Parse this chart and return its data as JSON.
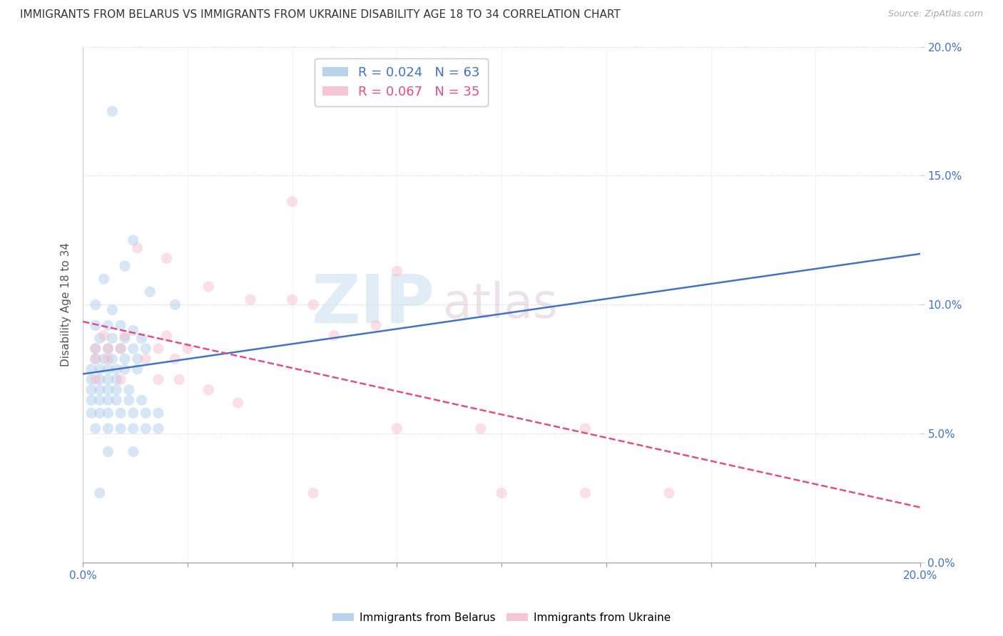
{
  "title": "IMMIGRANTS FROM BELARUS VS IMMIGRANTS FROM UKRAINE DISABILITY AGE 18 TO 34 CORRELATION CHART",
  "source": "Source: ZipAtlas.com",
  "ylabel": "Disability Age 18 to 34",
  "xlim": [
    0,
    0.2
  ],
  "ylim": [
    0,
    0.2
  ],
  "xticks": [
    0.0,
    0.025,
    0.05,
    0.075,
    0.1,
    0.125,
    0.15,
    0.175,
    0.2
  ],
  "yticks": [
    0.0,
    0.05,
    0.1,
    0.15,
    0.2
  ],
  "x_label_ticks": [
    0.0,
    0.2
  ],
  "x_label_values": [
    "0.0%",
    "20.0%"
  ],
  "right_ytick_labels": [
    "0.0%",
    "5.0%",
    "10.0%",
    "15.0%",
    "20.0%"
  ],
  "watermark_zip": "ZIP",
  "watermark_atlas": "atlas",
  "belarus_color": "#a8c8e8",
  "ukraine_color": "#f4b8c8",
  "belarus_line_color": "#4472c4",
  "ukraine_line_color": "#e05080",
  "belarus_R": 0.024,
  "belarus_N": 63,
  "ukraine_R": 0.067,
  "ukraine_N": 35,
  "legend_label_belarus": "R = 0.024   N = 63",
  "legend_label_ukraine": "R = 0.067   N = 35",
  "legend_label_belarus_bottom": "Immigrants from Belarus",
  "legend_label_ukraine_bottom": "Immigrants from Ukraine",
  "belarus_points": [
    [
      0.007,
      0.175
    ],
    [
      0.012,
      0.125
    ],
    [
      0.01,
      0.115
    ],
    [
      0.005,
      0.11
    ],
    [
      0.016,
      0.105
    ],
    [
      0.022,
      0.1
    ],
    [
      0.003,
      0.1
    ],
    [
      0.007,
      0.098
    ],
    [
      0.003,
      0.092
    ],
    [
      0.006,
      0.092
    ],
    [
      0.009,
      0.092
    ],
    [
      0.012,
      0.09
    ],
    [
      0.004,
      0.087
    ],
    [
      0.007,
      0.087
    ],
    [
      0.01,
      0.087
    ],
    [
      0.014,
      0.087
    ],
    [
      0.003,
      0.083
    ],
    [
      0.006,
      0.083
    ],
    [
      0.009,
      0.083
    ],
    [
      0.012,
      0.083
    ],
    [
      0.015,
      0.083
    ],
    [
      0.003,
      0.079
    ],
    [
      0.005,
      0.079
    ],
    [
      0.007,
      0.079
    ],
    [
      0.01,
      0.079
    ],
    [
      0.013,
      0.079
    ],
    [
      0.002,
      0.075
    ],
    [
      0.004,
      0.075
    ],
    [
      0.006,
      0.075
    ],
    [
      0.008,
      0.075
    ],
    [
      0.01,
      0.075
    ],
    [
      0.013,
      0.075
    ],
    [
      0.002,
      0.071
    ],
    [
      0.004,
      0.071
    ],
    [
      0.006,
      0.071
    ],
    [
      0.008,
      0.071
    ],
    [
      0.002,
      0.067
    ],
    [
      0.004,
      0.067
    ],
    [
      0.006,
      0.067
    ],
    [
      0.008,
      0.067
    ],
    [
      0.011,
      0.067
    ],
    [
      0.002,
      0.063
    ],
    [
      0.004,
      0.063
    ],
    [
      0.006,
      0.063
    ],
    [
      0.008,
      0.063
    ],
    [
      0.011,
      0.063
    ],
    [
      0.014,
      0.063
    ],
    [
      0.002,
      0.058
    ],
    [
      0.004,
      0.058
    ],
    [
      0.006,
      0.058
    ],
    [
      0.009,
      0.058
    ],
    [
      0.012,
      0.058
    ],
    [
      0.015,
      0.058
    ],
    [
      0.018,
      0.058
    ],
    [
      0.003,
      0.052
    ],
    [
      0.006,
      0.052
    ],
    [
      0.009,
      0.052
    ],
    [
      0.012,
      0.052
    ],
    [
      0.015,
      0.052
    ],
    [
      0.018,
      0.052
    ],
    [
      0.012,
      0.043
    ],
    [
      0.006,
      0.043
    ],
    [
      0.004,
      0.027
    ]
  ],
  "ukraine_points": [
    [
      0.05,
      0.14
    ],
    [
      0.013,
      0.122
    ],
    [
      0.02,
      0.118
    ],
    [
      0.03,
      0.107
    ],
    [
      0.04,
      0.102
    ],
    [
      0.05,
      0.102
    ],
    [
      0.055,
      0.1
    ],
    [
      0.075,
      0.113
    ],
    [
      0.07,
      0.092
    ],
    [
      0.005,
      0.088
    ],
    [
      0.01,
      0.088
    ],
    [
      0.02,
      0.088
    ],
    [
      0.06,
      0.088
    ],
    [
      0.003,
      0.083
    ],
    [
      0.006,
      0.083
    ],
    [
      0.009,
      0.083
    ],
    [
      0.018,
      0.083
    ],
    [
      0.025,
      0.083
    ],
    [
      0.003,
      0.079
    ],
    [
      0.006,
      0.079
    ],
    [
      0.015,
      0.079
    ],
    [
      0.022,
      0.079
    ],
    [
      0.003,
      0.071
    ],
    [
      0.009,
      0.071
    ],
    [
      0.018,
      0.071
    ],
    [
      0.023,
      0.071
    ],
    [
      0.03,
      0.067
    ],
    [
      0.037,
      0.062
    ],
    [
      0.095,
      0.052
    ],
    [
      0.12,
      0.052
    ],
    [
      0.1,
      0.027
    ],
    [
      0.14,
      0.027
    ],
    [
      0.075,
      0.052
    ],
    [
      0.055,
      0.027
    ],
    [
      0.12,
      0.027
    ]
  ],
  "background_color": "#ffffff",
  "grid_color": "#cccccc",
  "title_fontsize": 11,
  "axis_label_fontsize": 11,
  "tick_fontsize": 11,
  "marker_size": 120,
  "marker_alpha": 0.45,
  "line_width": 1.8
}
